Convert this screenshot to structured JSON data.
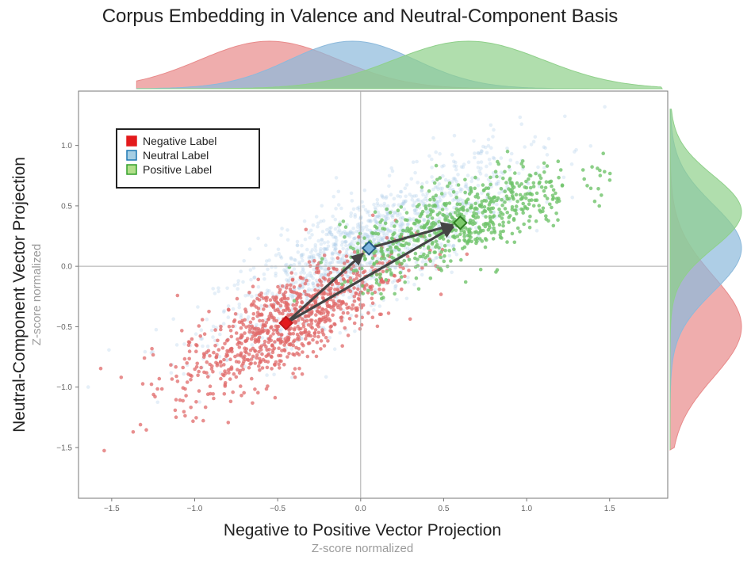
{
  "chart_data": {
    "type": "scatter",
    "title": "Corpus Embedding in Valence and Neutral-Component Basis",
    "xlabel": "Negative to Positive Vector Projection",
    "xsublabel": "Z-score normalized",
    "ylabel": "Neutral-Component Vector Projection",
    "ysublabel": "Z-score normalized",
    "xlim": [
      -1.7,
      1.85
    ],
    "ylim": [
      -1.92,
      1.45
    ],
    "xticks": [
      -1.5,
      -1.0,
      -0.5,
      0.0,
      0.5,
      1.0,
      1.5
    ],
    "xtick_labels": [
      "−1.5",
      "−1.0",
      "−0.5",
      "0.0",
      "0.5",
      "1.0",
      "1.5"
    ],
    "yticks": [
      -1.5,
      -1.0,
      -0.5,
      0.0,
      0.5,
      1.0
    ],
    "ytick_labels": [
      "−1.5",
      "−1.0",
      "−0.5",
      "0.0",
      "0.5",
      "1.0"
    ],
    "grid": false,
    "reference_lines": {
      "x": 0,
      "y": 0
    },
    "legend_placement": "top-left",
    "legend": [
      {
        "label": "Negative Label",
        "color": "#e31a1c",
        "fill": "#e31a1c"
      },
      {
        "label": "Neutral Label",
        "color": "#1f78b4",
        "fill": "#a6cee3"
      },
      {
        "label": "Positive Label",
        "color": "#33a02c",
        "fill": "#b2df8a"
      }
    ],
    "series": [
      {
        "name": "Negative Label",
        "color": "#e06a6a",
        "n": 900,
        "center": [
          -0.45,
          -0.47
        ],
        "spread": [
          0.33,
          0.35
        ],
        "slope": 0.7,
        "alpha": 0.75
      },
      {
        "name": "Neutral Label",
        "color": "#a9c9e8",
        "n": 1400,
        "center": [
          0.05,
          0.15
        ],
        "spread": [
          0.45,
          0.4
        ],
        "slope": 0.7,
        "alpha": 0.3
      },
      {
        "name": "Positive Label",
        "color": "#6fc36a",
        "n": 650,
        "center": [
          0.6,
          0.36
        ],
        "spread": [
          0.35,
          0.3
        ],
        "slope": 0.5,
        "alpha": 0.8
      }
    ],
    "centroids": [
      {
        "name": "Negative Label",
        "x": -0.45,
        "y": -0.47,
        "fill": "#e31a1c",
        "stroke": "#c0161a"
      },
      {
        "name": "Neutral Label",
        "x": 0.05,
        "y": 0.15,
        "fill": "#7fb6e0",
        "stroke": "#245b86"
      },
      {
        "name": "Positive Label",
        "x": 0.6,
        "y": 0.36,
        "fill": "#7bc96a",
        "stroke": "#2f7d23"
      }
    ],
    "arrows": [
      {
        "from": [
          -0.45,
          -0.47
        ],
        "to": [
          0.05,
          0.15
        ]
      },
      {
        "from": [
          0.05,
          0.15
        ],
        "to": [
          0.6,
          0.36
        ]
      },
      {
        "from": [
          -0.45,
          -0.47
        ],
        "to": [
          0.6,
          0.36
        ]
      }
    ],
    "marginal_x": [
      {
        "name": "Negative Label",
        "color": "#e88a8a",
        "mean": -0.55,
        "sd": 0.42
      },
      {
        "name": "Neutral Label",
        "color": "#8cb9db",
        "mean": -0.05,
        "sd": 0.38
      },
      {
        "name": "Positive Label",
        "color": "#8fd08a",
        "mean": 0.65,
        "sd": 0.45
      }
    ],
    "marginal_y": [
      {
        "name": "Negative Label",
        "color": "#e88a8a",
        "mean": -0.5,
        "sd": 0.42
      },
      {
        "name": "Neutral Label",
        "color": "#8cb9db",
        "mean": 0.15,
        "sd": 0.36
      },
      {
        "name": "Positive Label",
        "color": "#8fd08a",
        "mean": 0.45,
        "sd": 0.3
      }
    ]
  }
}
